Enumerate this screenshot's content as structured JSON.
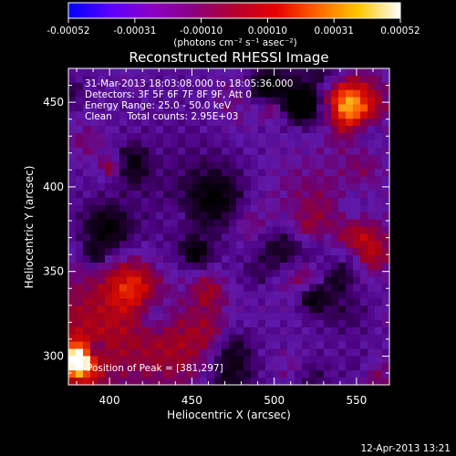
{
  "colorbar": {
    "tick_labels": [
      "-0.00052",
      "-0.00031",
      "-0.00010",
      "0.00010",
      "0.00031",
      "0.00052"
    ],
    "units_label": "(photons cm⁻² s⁻¹ asec⁻²)",
    "range": [
      -0.00052,
      0.00052
    ],
    "gradient_colors": [
      "#0000ff",
      "#5a00ff",
      "#8c00c8",
      "#8a0080",
      "#b40030",
      "#e60000",
      "#ff6400",
      "#ffc800",
      "#ffffff"
    ]
  },
  "chart_data": {
    "type": "heatmap",
    "title": "Reconstructed RHESSI Image",
    "xlabel": "Heliocentric X (arcsec)",
    "ylabel": "Heliocentric Y (arcsec)",
    "xlim": [
      375,
      570
    ],
    "ylim": [
      283,
      470
    ],
    "x_ticks": [
      400,
      450,
      500,
      550
    ],
    "y_ticks": [
      300,
      350,
      400,
      450
    ],
    "x_tick_labels": [
      "400",
      "450",
      "500",
      "550"
    ],
    "y_tick_labels": [
      "300",
      "350",
      "400",
      "450"
    ],
    "annotations": [
      "31-Mar-2013 18:03:08.000 to 18:05:36.000",
      "Detectors: 3F 5F 6F 7F 8F 9F, Att 0",
      "Energy Range: 25.0 - 50.0 keV",
      "Clean     Total counts: 2.95E+03"
    ],
    "peak_label": "Position of Peak = [381,297]",
    "peak": [
      381,
      297
    ]
  },
  "footer": {
    "timestamp": "12-Apr-2013 13:21"
  }
}
